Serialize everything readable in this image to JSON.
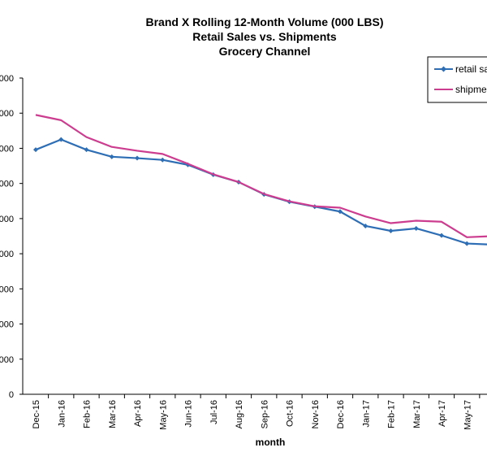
{
  "chart_data": {
    "type": "line",
    "title": "Brand X Rolling 12-Month Volume (000 LBS)",
    "subtitle": "Retail Sales vs. Shipments",
    "subtitle2": "Grocery Channel",
    "xlabel": "month",
    "ylabel": "",
    "ylim": [
      0,
      9000
    ],
    "y_ticks": [
      {
        "value": 0,
        "label": "0"
      },
      {
        "value": 1000,
        "label": "000"
      },
      {
        "value": 2000,
        "label": "000"
      },
      {
        "value": 3000,
        "label": "000"
      },
      {
        "value": 4000,
        "label": "000"
      },
      {
        "value": 5000,
        "label": "000"
      },
      {
        "value": 6000,
        "label": "000"
      },
      {
        "value": 7000,
        "label": "000"
      },
      {
        "value": 8000,
        "label": "000"
      },
      {
        "value": 9000,
        "label": "000"
      }
    ],
    "categories": [
      "Dec-15",
      "Jan-16",
      "Feb-16",
      "Mar-16",
      "Apr-16",
      "May-16",
      "Jun-16",
      "Jul-16",
      "Aug-16",
      "Sep-16",
      "Oct-16",
      "Nov-16",
      "Dec-16",
      "Jan-17",
      "Feb-17",
      "Mar-17",
      "Apr-17",
      "May-17",
      ""
    ],
    "grid": false,
    "legend_position": "top-right",
    "series": [
      {
        "name": "retail sa",
        "color": "#2e6eb5",
        "marker": "diamond",
        "values": [
          6960,
          7250,
          6960,
          6760,
          6720,
          6670,
          6530,
          6250,
          6040,
          5690,
          5480,
          5340,
          5200,
          4790,
          4650,
          4720,
          4520,
          4290,
          4260
        ]
      },
      {
        "name": "shipme",
        "color": "#cc3d8f",
        "marker": "none",
        "values": [
          7950,
          7800,
          7320,
          7040,
          6930,
          6840,
          6560,
          6260,
          6040,
          5700,
          5490,
          5350,
          5310,
          5060,
          4870,
          4940,
          4910,
          4470,
          4500
        ]
      }
    ]
  }
}
